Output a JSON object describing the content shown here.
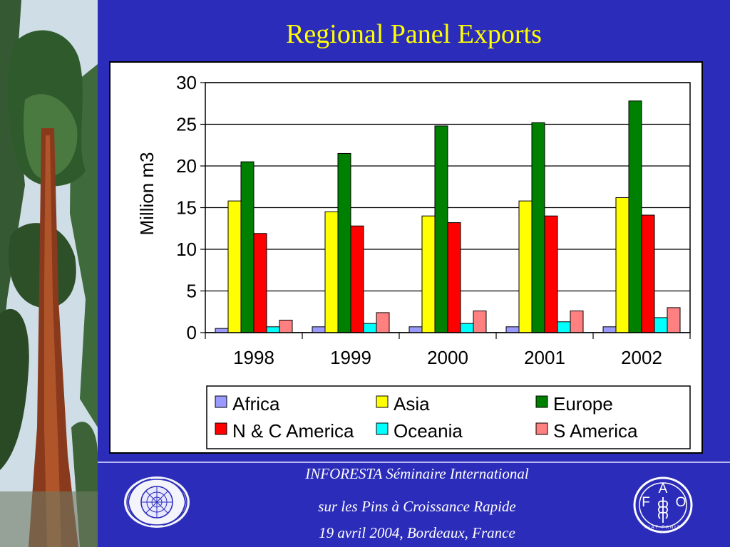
{
  "slide": {
    "title": "Regional Panel Exports",
    "footer_lines": [
      "INFORESTA Séminaire International",
      "sur les Pins à Croissance Rapide",
      "19 avril 2004, Bordeaux, France"
    ],
    "logos": {
      "fao_letters": [
        "F",
        "A",
        "O"
      ],
      "fao_motto": "FIAT PANIS"
    }
  },
  "chart_data": {
    "type": "bar",
    "title": "",
    "xlabel": "",
    "ylabel": "Million m3",
    "ylim": [
      0,
      30
    ],
    "yticks": [
      0,
      5,
      10,
      15,
      20,
      25,
      30
    ],
    "grid": true,
    "legend": "bottom",
    "categories": [
      "1998",
      "1999",
      "2000",
      "2001",
      "2002"
    ],
    "series": [
      {
        "name": "Africa",
        "color": "#9999ff",
        "values": [
          0.5,
          0.7,
          0.7,
          0.7,
          0.7
        ]
      },
      {
        "name": "Asia",
        "color": "#ffff00",
        "values": [
          15.8,
          14.5,
          14.0,
          15.8,
          16.2
        ]
      },
      {
        "name": "Europe",
        "color": "#008000",
        "values": [
          20.5,
          21.5,
          24.8,
          25.2,
          27.8
        ]
      },
      {
        "name": "N & C America",
        "color": "#ff0000",
        "values": [
          11.9,
          12.8,
          13.2,
          14.0,
          14.1
        ]
      },
      {
        "name": "Oceania",
        "color": "#00ffff",
        "values": [
          0.7,
          1.1,
          1.1,
          1.3,
          1.8
        ]
      },
      {
        "name": "S America",
        "color": "#ff8080",
        "values": [
          1.5,
          2.4,
          2.6,
          2.6,
          3.0
        ]
      }
    ]
  }
}
